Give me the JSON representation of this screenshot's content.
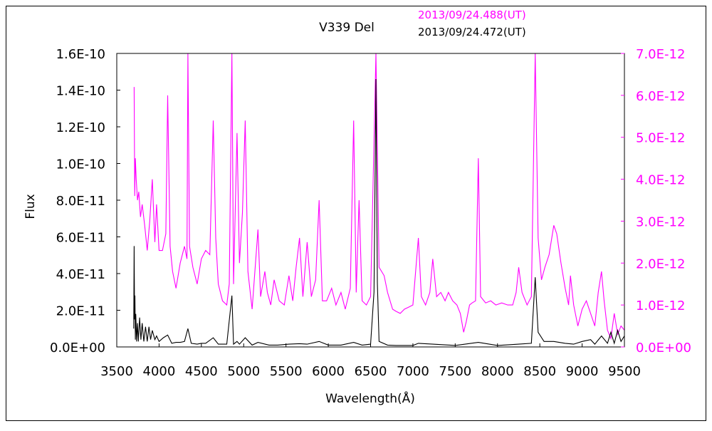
{
  "chart_data": {
    "type": "line",
    "title": "V339 Del",
    "xlabel": "Wavelength(Å)",
    "ylabel": "Flux",
    "xlim": [
      3500,
      9500
    ],
    "ylim_left": [
      0,
      1.6e-10
    ],
    "ylim_right": [
      0,
      7e-12
    ],
    "x_ticks": [
      "3500",
      "4000",
      "4500",
      "5000",
      "5500",
      "6000",
      "6500",
      "7000",
      "7500",
      "8000",
      "8500",
      "9000",
      "9500"
    ],
    "y_left_ticks": [
      "0.0E+00",
      "2.0E-11",
      "4.0E-11",
      "6.0E-11",
      "8.0E-11",
      "1.0E-10",
      "1.2E-10",
      "1.4E-10",
      "1.6E-10"
    ],
    "y_right_ticks": [
      "0.0E+00",
      "1.0E-12",
      "2.0E-12",
      "3.0E-12",
      "4.0E-12",
      "5.0E-12",
      "6.0E-12",
      "7.0E-12"
    ],
    "grid": false,
    "legend_position": "top-right",
    "colors": {
      "series_black": "#000000",
      "series_magenta": "#ff00ff",
      "frame": "#000000"
    },
    "series": [
      {
        "name": "2013/09/24.488(UT)",
        "axis": "right",
        "color": "#ff00ff",
        "points": [
          [
            3705,
            6.2e-12
          ],
          [
            3712,
            3.6e-12
          ],
          [
            3720,
            4.5e-12
          ],
          [
            3730,
            4e-12
          ],
          [
            3745,
            3.5e-12
          ],
          [
            3760,
            3.7e-12
          ],
          [
            3780,
            3.1e-12
          ],
          [
            3800,
            3.4e-12
          ],
          [
            3830,
            2.9e-12
          ],
          [
            3860,
            2.3e-12
          ],
          [
            3890,
            3e-12
          ],
          [
            3920,
            4e-12
          ],
          [
            3950,
            2.5e-12
          ],
          [
            3970,
            3.4e-12
          ],
          [
            4000,
            2.3e-12
          ],
          [
            4040,
            2.3e-12
          ],
          [
            4080,
            2.7e-12
          ],
          [
            4102,
            6e-12
          ],
          [
            4130,
            2.4e-12
          ],
          [
            4160,
            1.8e-12
          ],
          [
            4200,
            1.4e-12
          ],
          [
            4250,
            2e-12
          ],
          [
            4300,
            2.4e-12
          ],
          [
            4330,
            2.1e-12
          ],
          [
            4341,
            7e-12
          ],
          [
            4360,
            2.4e-12
          ],
          [
            4400,
            1.9e-12
          ],
          [
            4450,
            1.5e-12
          ],
          [
            4500,
            2.1e-12
          ],
          [
            4550,
            2.3e-12
          ],
          [
            4600,
            2.2e-12
          ],
          [
            4640,
            5.4e-12
          ],
          [
            4670,
            2.6e-12
          ],
          [
            4700,
            1.5e-12
          ],
          [
            4750,
            1.1e-12
          ],
          [
            4800,
            1e-12
          ],
          [
            4830,
            1.5e-12
          ],
          [
            4861,
            7e-12
          ],
          [
            4880,
            1.5e-12
          ],
          [
            4921,
            5.1e-12
          ],
          [
            4950,
            2e-12
          ],
          [
            4985,
            3.2e-12
          ],
          [
            5018,
            5.4e-12
          ],
          [
            5050,
            1.8e-12
          ],
          [
            5100,
            9e-13
          ],
          [
            5169,
            2.8e-12
          ],
          [
            5200,
            1.2e-12
          ],
          [
            5250,
            1.8e-12
          ],
          [
            5280,
            1.3e-12
          ],
          [
            5320,
            1e-12
          ],
          [
            5360,
            1.6e-12
          ],
          [
            5420,
            1.1e-12
          ],
          [
            5480,
            1e-12
          ],
          [
            5535,
            1.7e-12
          ],
          [
            5580,
            1.1e-12
          ],
          [
            5620,
            1.9e-12
          ],
          [
            5660,
            2.6e-12
          ],
          [
            5700,
            1.2e-12
          ],
          [
            5750,
            2.5e-12
          ],
          [
            5800,
            1.2e-12
          ],
          [
            5850,
            1.6e-12
          ],
          [
            5892,
            3.5e-12
          ],
          [
            5930,
            1.1e-12
          ],
          [
            5980,
            1.1e-12
          ],
          [
            6040,
            1.4e-12
          ],
          [
            6090,
            1e-12
          ],
          [
            6150,
            1.3e-12
          ],
          [
            6200,
            9e-13
          ],
          [
            6260,
            1.4e-12
          ],
          [
            6300,
            5.4e-12
          ],
          [
            6330,
            1.3e-12
          ],
          [
            6364,
            3.5e-12
          ],
          [
            6400,
            1.1e-12
          ],
          [
            6450,
            1e-12
          ],
          [
            6500,
            1.2e-12
          ],
          [
            6563,
            7e-12
          ],
          [
            6600,
            1.9e-12
          ],
          [
            6660,
            1.7e-12
          ],
          [
            6700,
            1.3e-12
          ],
          [
            6760,
            9e-13
          ],
          [
            6800,
            8.5e-13
          ],
          [
            6850,
            8e-13
          ],
          [
            6900,
            9e-13
          ],
          [
            6950,
            9.5e-13
          ],
          [
            7000,
            1e-12
          ],
          [
            7065,
            2.6e-12
          ],
          [
            7100,
            1.2e-12
          ],
          [
            7150,
            1e-12
          ],
          [
            7200,
            1.3e-12
          ],
          [
            7235,
            2.1e-12
          ],
          [
            7280,
            1.2e-12
          ],
          [
            7330,
            1.3e-12
          ],
          [
            7380,
            1.1e-12
          ],
          [
            7420,
            1.3e-12
          ],
          [
            7470,
            1.1e-12
          ],
          [
            7520,
            1e-12
          ],
          [
            7560,
            8e-13
          ],
          [
            7600,
            3.5e-13
          ],
          [
            7630,
            6e-13
          ],
          [
            7670,
            1e-12
          ],
          [
            7700,
            1.05e-12
          ],
          [
            7740,
            1.1e-12
          ],
          [
            7773,
            4.5e-12
          ],
          [
            7800,
            1.2e-12
          ],
          [
            7860,
            1.05e-12
          ],
          [
            7920,
            1.1e-12
          ],
          [
            7980,
            1e-12
          ],
          [
            8050,
            1.05e-12
          ],
          [
            8120,
            1e-12
          ],
          [
            8180,
            1e-12
          ],
          [
            8220,
            1.3e-12
          ],
          [
            8250,
            1.9e-12
          ],
          [
            8290,
            1.3e-12
          ],
          [
            8350,
            1e-12
          ],
          [
            8400,
            1.2e-12
          ],
          [
            8446,
            7e-12
          ],
          [
            8480,
            2.6e-12
          ],
          [
            8520,
            1.6e-12
          ],
          [
            8560,
            1.9e-12
          ],
          [
            8610,
            2.2e-12
          ],
          [
            8665,
            2.9e-12
          ],
          [
            8700,
            2.7e-12
          ],
          [
            8750,
            2e-12
          ],
          [
            8800,
            1.4e-12
          ],
          [
            8840,
            1e-12
          ],
          [
            8862,
            1.7e-12
          ],
          [
            8900,
            1e-12
          ],
          [
            8950,
            5e-13
          ],
          [
            9000,
            9e-13
          ],
          [
            9050,
            1.1e-12
          ],
          [
            9100,
            8e-13
          ],
          [
            9150,
            5e-13
          ],
          [
            9190,
            1.3e-12
          ],
          [
            9229,
            1.8e-12
          ],
          [
            9260,
            1.1e-12
          ],
          [
            9300,
            4e-13
          ],
          [
            9340,
            2e-13
          ],
          [
            9380,
            8e-13
          ],
          [
            9420,
            3e-13
          ],
          [
            9460,
            5e-13
          ],
          [
            9500,
            4e-13
          ]
        ]
      },
      {
        "name": "2013/09/24.472(UT)",
        "axis": "left",
        "color": "#000000",
        "points": [
          [
            3700,
            1e-11
          ],
          [
            3705,
            5.5e-11
          ],
          [
            3710,
            1.5e-11
          ],
          [
            3715,
            2.8e-11
          ],
          [
            3720,
            4e-12
          ],
          [
            3725,
            1.8e-11
          ],
          [
            3735,
            3e-12
          ],
          [
            3745,
            1.3e-11
          ],
          [
            3755,
            3e-12
          ],
          [
            3770,
            1.6e-11
          ],
          [
            3785,
            4e-12
          ],
          [
            3800,
            1.3e-11
          ],
          [
            3820,
            3e-12
          ],
          [
            3840,
            1.1e-11
          ],
          [
            3860,
            3e-12
          ],
          [
            3880,
            1.1e-11
          ],
          [
            3900,
            4e-12
          ],
          [
            3920,
            9e-12
          ],
          [
            3950,
            4e-12
          ],
          [
            3970,
            6e-12
          ],
          [
            4000,
            3e-12
          ],
          [
            4050,
            5e-12
          ],
          [
            4102,
            6.5e-12
          ],
          [
            4150,
            2e-12
          ],
          [
            4200,
            2.5e-12
          ],
          [
            4250,
            2.5e-12
          ],
          [
            4300,
            3e-12
          ],
          [
            4341,
            1e-11
          ],
          [
            4380,
            2e-12
          ],
          [
            4450,
            1.5e-12
          ],
          [
            4500,
            2e-12
          ],
          [
            4550,
            2e-12
          ],
          [
            4640,
            5e-12
          ],
          [
            4700,
            1.5e-12
          ],
          [
            4800,
            1.5e-12
          ],
          [
            4861,
            2.8e-11
          ],
          [
            4880,
            1.5e-12
          ],
          [
            4921,
            3e-12
          ],
          [
            4950,
            1.5e-12
          ],
          [
            5018,
            5e-12
          ],
          [
            5100,
            1e-12
          ],
          [
            5169,
            2.5e-12
          ],
          [
            5300,
            1e-12
          ],
          [
            5400,
            1e-12
          ],
          [
            5535,
            1.5e-12
          ],
          [
            5660,
            1.8e-12
          ],
          [
            5750,
            1.5e-12
          ],
          [
            5892,
            3e-12
          ],
          [
            6000,
            1e-12
          ],
          [
            6150,
            1e-12
          ],
          [
            6300,
            2.5e-12
          ],
          [
            6400,
            1e-12
          ],
          [
            6500,
            1.5e-12
          ],
          [
            6540,
            3e-11
          ],
          [
            6563,
            1.46e-10
          ],
          [
            6580,
            3.5e-11
          ],
          [
            6600,
            3e-12
          ],
          [
            6700,
            1e-12
          ],
          [
            6800,
            8e-13
          ],
          [
            7000,
            8e-13
          ],
          [
            7065,
            2e-12
          ],
          [
            7235,
            1.5e-12
          ],
          [
            7500,
            8e-13
          ],
          [
            7773,
            2.5e-12
          ],
          [
            8000,
            8e-13
          ],
          [
            8250,
            1.5e-12
          ],
          [
            8400,
            2e-12
          ],
          [
            8446,
            3.8e-11
          ],
          [
            8480,
            8e-12
          ],
          [
            8550,
            3e-12
          ],
          [
            8665,
            3e-12
          ],
          [
            8800,
            2e-12
          ],
          [
            8900,
            1.5e-12
          ],
          [
            9000,
            3e-12
          ],
          [
            9100,
            4e-12
          ],
          [
            9150,
            1.5e-12
          ],
          [
            9229,
            6e-12
          ],
          [
            9300,
            2e-12
          ],
          [
            9340,
            8e-12
          ],
          [
            9380,
            2e-12
          ],
          [
            9420,
            9e-12
          ],
          [
            9460,
            3e-12
          ],
          [
            9500,
            6e-12
          ]
        ]
      }
    ]
  }
}
